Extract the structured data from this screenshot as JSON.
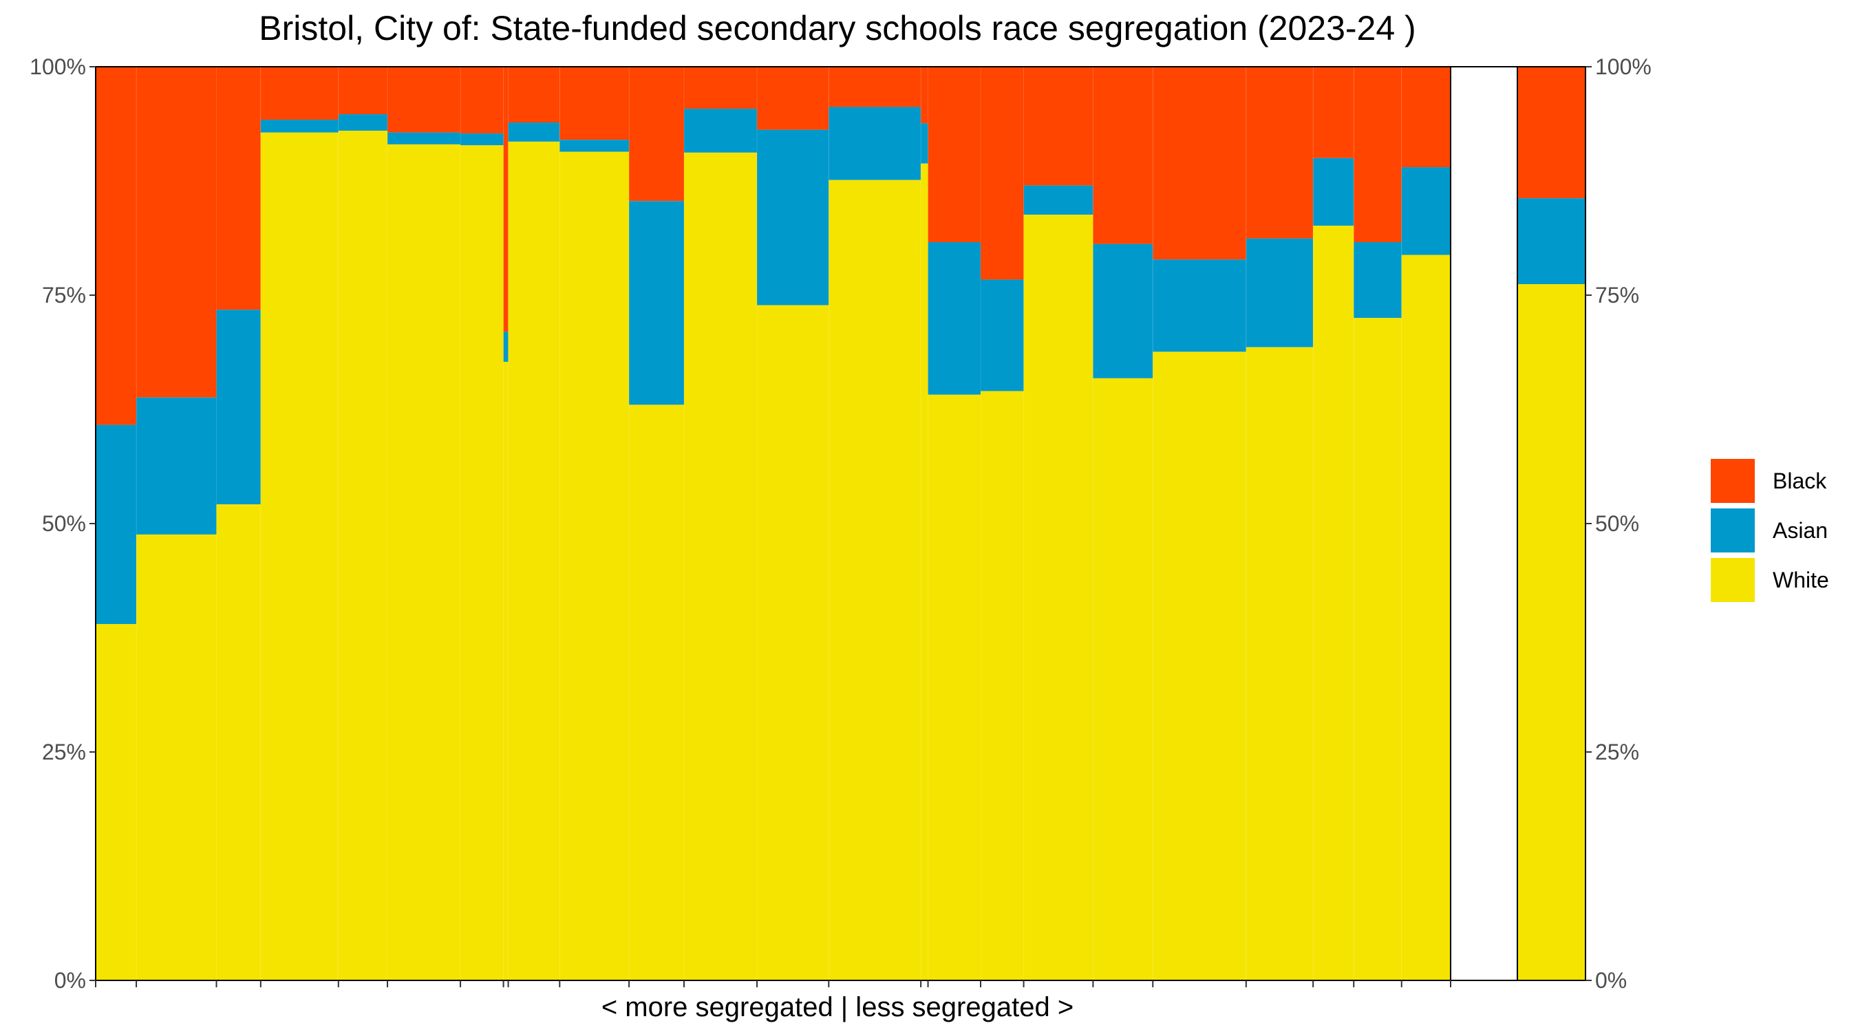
{
  "chart_data": {
    "type": "bar",
    "subtype": "variable-width stacked bar (mosaic)",
    "title": "Bristol, City of: State-funded secondary schools race segregation (2023-24 )",
    "xlabel": "< more segregated | less segregated >",
    "ylabel": "",
    "ylim": [
      0,
      100
    ],
    "yticks": [
      "0%",
      "25%",
      "50%",
      "75%",
      "100%"
    ],
    "grid": false,
    "legend_position": "right",
    "series": [
      {
        "name": "Black",
        "color": "#FF4500"
      },
      {
        "name": "Asian",
        "color": "#0099CC"
      },
      {
        "name": "White",
        "color": "#F5E400"
      }
    ],
    "schools": [
      {
        "width": 34,
        "white": 39.0,
        "asian": 21.8
      },
      {
        "width": 67,
        "white": 48.8,
        "asian": 15.0
      },
      {
        "width": 37,
        "white": 52.1,
        "asian": 21.3
      },
      {
        "width": 65,
        "white": 92.8,
        "asian": 1.4
      },
      {
        "width": 41,
        "white": 93.0,
        "asian": 1.8
      },
      {
        "width": 61,
        "white": 91.5,
        "asian": 1.3
      },
      {
        "width": 36,
        "white": 91.4,
        "asian": 1.3
      },
      {
        "width": 4,
        "white": 67.7,
        "asian": 3.3
      },
      {
        "width": 43,
        "white": 91.8,
        "asian": 2.1
      },
      {
        "width": 58,
        "white": 90.7,
        "asian": 1.3
      },
      {
        "width": 46,
        "white": 63.0,
        "asian": 22.3
      },
      {
        "width": 61,
        "white": 90.6,
        "asian": 4.8
      },
      {
        "width": 60,
        "white": 73.9,
        "asian": 19.2
      },
      {
        "width": 77,
        "white": 87.6,
        "asian": 8.0
      },
      {
        "width": 6,
        "white": 89.4,
        "asian": 4.4
      },
      {
        "width": 44,
        "white": 64.1,
        "asian": 16.7
      },
      {
        "width": 36,
        "white": 64.5,
        "asian": 12.2
      },
      {
        "width": 58,
        "white": 83.8,
        "asian": 3.2
      },
      {
        "width": 50,
        "white": 65.9,
        "asian": 14.7
      },
      {
        "width": 78,
        "white": 68.8,
        "asian": 10.1
      },
      {
        "width": 56,
        "white": 69.3,
        "asian": 11.9
      },
      {
        "width": 34,
        "white": 82.6,
        "asian": 7.4
      },
      {
        "width": 40,
        "white": 72.5,
        "asian": 8.3
      },
      {
        "width": 41,
        "white": 79.4,
        "asian": 9.6
      }
    ],
    "overall": {
      "white": 76.2,
      "asian": 9.4
    }
  }
}
